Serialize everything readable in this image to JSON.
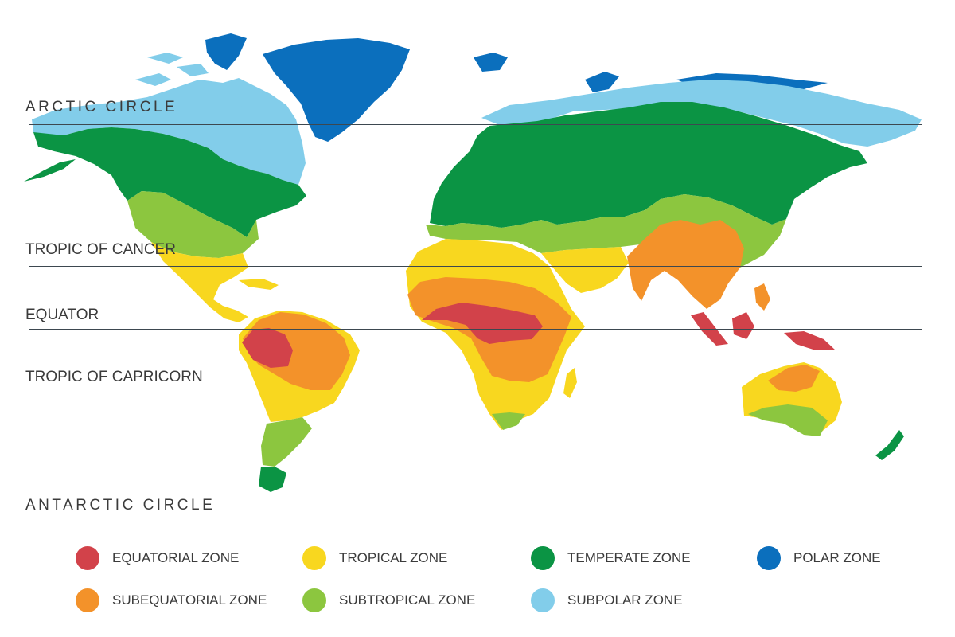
{
  "latitudes": [
    {
      "label": "ARCTIC CIRCLE"
    },
    {
      "label": "TROPIC OF CANCER"
    },
    {
      "label": "EQUATOR"
    },
    {
      "label": "TROPIC OF CAPRICORN"
    },
    {
      "label": "ANTARCTIC CIRCLE"
    }
  ],
  "zones": {
    "equatorial": {
      "label": "EQUATORIAL ZONE",
      "color": "#d2424a"
    },
    "subequatorial": {
      "label": "SUBEQUATORIAL ZONE",
      "color": "#f3922a"
    },
    "tropical": {
      "label": "TROPICAL ZONE",
      "color": "#f8d71f"
    },
    "subtropical": {
      "label": "SUBTROPICAL ZONE",
      "color": "#8cc63f"
    },
    "temperate": {
      "label": "TEMPERATE ZONE",
      "color": "#0b9444"
    },
    "subpolar": {
      "label": "SUBPOLAR ZONE",
      "color": "#82cdea"
    },
    "polar": {
      "label": "POLAR ZONE",
      "color": "#0b6fbd"
    }
  }
}
